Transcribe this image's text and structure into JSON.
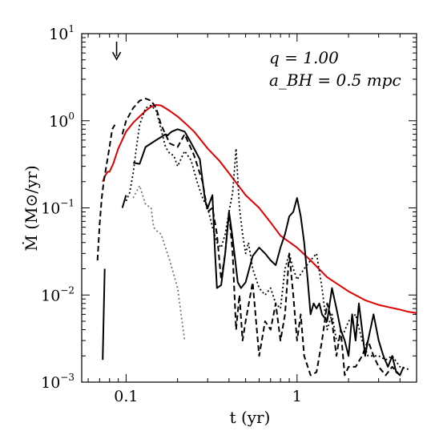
{
  "chart_data": {
    "type": "line",
    "xlabel": "t   (yr)",
    "ylabel": "Ṁ   (M⊙/yr)",
    "x_scale": "log",
    "y_scale": "log",
    "xlim": [
      0.055,
      5.0
    ],
    "ylim": [
      0.001,
      10
    ],
    "x_ticks": [
      {
        "value": 0.1,
        "label": "0.1"
      },
      {
        "value": 1,
        "label": "1"
      }
    ],
    "y_ticks": [
      {
        "value": 0.001,
        "base": "10",
        "exp": "−3"
      },
      {
        "value": 0.01,
        "base": "10",
        "exp": "−2"
      },
      {
        "value": 0.1,
        "base": "10",
        "exp": "−1"
      },
      {
        "value": 1,
        "base": "10",
        "exp": "0"
      },
      {
        "value": 10,
        "base": "10",
        "exp": "1"
      }
    ],
    "annotations": [
      "q = 1.00",
      "a_BH = 0.5 mpc"
    ],
    "arrow_marker": {
      "x": 0.088,
      "direction": "down"
    },
    "grid": false,
    "legend": "none",
    "series": [
      {
        "color": "#e00000",
        "dash": "solid",
        "width": 2,
        "x": [
          0.073,
          0.075,
          0.078,
          0.08,
          0.084,
          0.09,
          0.1,
          0.11,
          0.12,
          0.13,
          0.14,
          0.15,
          0.16,
          0.18,
          0.2,
          0.22,
          0.25,
          0.3,
          0.35,
          0.4,
          0.5,
          0.6,
          0.7,
          0.8,
          1.0,
          1.2,
          1.5,
          2.0,
          2.5,
          3.0,
          3.5,
          4.0,
          4.5,
          5.0
        ],
        "y": [
          0.2,
          0.23,
          0.26,
          0.26,
          0.32,
          0.48,
          0.75,
          0.95,
          1.12,
          1.3,
          1.45,
          1.52,
          1.5,
          1.3,
          1.12,
          0.95,
          0.75,
          0.48,
          0.35,
          0.25,
          0.14,
          0.1,
          0.068,
          0.048,
          0.035,
          0.025,
          0.016,
          0.011,
          0.0087,
          0.0077,
          0.0072,
          0.0068,
          0.0064,
          0.0062
        ]
      },
      {
        "color": "#000000",
        "dash": "solid",
        "width": 2,
        "x": [
          0.073,
          0.075,
          0.09,
          0.095,
          0.1,
          0.105,
          0.11,
          0.12,
          0.13,
          0.14,
          0.15,
          0.16,
          0.17,
          0.175,
          0.18,
          0.185,
          0.2,
          0.22,
          0.235,
          0.25,
          0.27,
          0.29,
          0.3,
          0.32,
          0.33,
          0.34,
          0.36,
          0.38,
          0.4,
          0.42,
          0.45,
          0.47,
          0.5,
          0.55,
          0.6,
          0.65,
          0.7,
          0.75,
          0.8,
          0.85,
          0.9,
          0.95,
          1.0,
          1.05,
          1.1,
          1.15,
          1.2,
          1.25,
          1.3,
          1.35,
          1.4,
          1.5,
          1.6,
          1.7,
          1.8,
          1.9,
          2.0,
          2.1,
          2.2,
          2.3,
          2.4,
          2.5,
          2.6,
          2.8,
          3.0,
          3.2,
          3.4,
          3.6,
          3.8,
          4.0,
          4.2
        ],
        "y": [
          0.0018,
          0.02,
          null,
          0.1,
          0.14,
          null,
          0.33,
          0.32,
          0.5,
          0.55,
          0.6,
          0.65,
          0.7,
          0.68,
          0.72,
          0.75,
          0.8,
          0.75,
          0.6,
          0.48,
          0.36,
          0.12,
          0.1,
          0.14,
          0.035,
          0.012,
          0.013,
          0.03,
          0.09,
          0.045,
          0.014,
          0.012,
          0.014,
          0.028,
          0.035,
          0.03,
          0.025,
          0.022,
          0.035,
          0.05,
          0.08,
          0.09,
          0.13,
          0.08,
          0.04,
          0.016,
          0.006,
          0.008,
          0.007,
          0.008,
          0.006,
          0.005,
          0.012,
          0.007,
          0.004,
          0.003,
          0.002,
          0.006,
          0.003,
          0.008,
          0.004,
          0.002,
          0.003,
          0.006,
          0.003,
          0.002,
          0.0015,
          0.002,
          0.0013,
          0.0012,
          0.0015
        ]
      },
      {
        "color": "#000000",
        "dash": "dashed",
        "width": 2,
        "x": [
          0.068,
          0.07,
          0.072,
          0.074,
          0.077,
          0.08,
          0.083,
          0.086,
          0.09,
          0.095,
          0.1,
          0.11,
          0.12,
          0.13,
          0.14,
          0.15,
          0.16,
          0.18,
          0.2,
          0.22,
          0.25,
          0.28,
          0.3,
          0.32,
          0.34,
          0.36,
          0.38,
          0.4,
          0.42,
          0.44,
          0.46,
          0.48,
          0.5,
          0.55,
          0.6,
          0.65,
          0.7,
          0.75,
          0.8,
          0.85,
          0.9,
          0.95,
          1.0,
          1.05,
          1.1,
          1.2,
          1.3,
          1.4,
          1.5,
          1.6,
          1.7,
          1.8,
          1.9,
          2.0,
          2.2,
          2.4,
          2.6,
          2.8,
          3.0,
          3.3,
          3.6,
          4.0
        ],
        "y": [
          0.025,
          0.065,
          0.13,
          0.2,
          0.32,
          0.5,
          0.8,
          0.9,
          null,
          0.7,
          1.0,
          1.4,
          1.7,
          1.8,
          1.7,
          1.4,
          0.9,
          0.55,
          0.5,
          0.7,
          0.4,
          0.2,
          0.09,
          0.1,
          0.05,
          0.015,
          0.03,
          0.09,
          0.03,
          0.004,
          0.01,
          0.003,
          0.005,
          0.014,
          0.002,
          0.005,
          0.004,
          0.008,
          0.003,
          0.006,
          0.03,
          0.01,
          0.003,
          0.006,
          0.002,
          0.0012,
          0.0013,
          0.003,
          0.008,
          0.005,
          0.002,
          0.004,
          0.0012,
          0.0015,
          0.0015,
          0.002,
          0.003,
          0.002,
          0.0015,
          0.0012,
          0.0015,
          0.0012
        ]
      },
      {
        "color": "#000000",
        "dash": "dotted",
        "width": 1.8,
        "x": [
          0.1,
          0.105,
          0.11,
          0.115,
          0.12,
          0.13,
          0.14,
          0.15,
          0.16,
          0.17,
          0.18,
          0.19,
          0.2,
          0.22,
          0.24,
          0.26,
          0.28,
          0.3,
          0.32,
          0.34,
          0.36,
          0.38,
          0.4,
          0.42,
          0.44,
          0.46,
          0.48,
          0.5,
          0.52,
          0.55,
          0.6,
          0.65,
          0.7,
          0.75,
          0.8,
          0.85,
          0.9,
          0.95,
          1.0,
          1.1,
          1.2,
          1.3,
          1.4,
          1.5,
          1.6,
          1.7,
          1.8,
          2.0,
          2.2,
          2.4,
          2.6,
          2.8,
          3.0,
          3.3,
          3.6,
          4.0,
          4.5
        ],
        "y": [
          0.12,
          0.15,
          0.25,
          0.5,
          0.9,
          1.4,
          1.5,
          1.3,
          0.8,
          0.5,
          0.42,
          0.4,
          0.3,
          0.45,
          0.35,
          0.2,
          0.13,
          0.1,
          0.06,
          0.04,
          0.035,
          0.05,
          0.09,
          0.15,
          0.48,
          0.1,
          0.05,
          0.03,
          0.04,
          0.02,
          0.012,
          0.01,
          0.012,
          0.008,
          0.007,
          0.02,
          0.03,
          0.02,
          0.015,
          0.02,
          0.025,
          0.03,
          0.012,
          0.004,
          0.006,
          0.003,
          0.003,
          0.005,
          0.006,
          0.003,
          0.002,
          0.002,
          0.002,
          0.0018,
          0.002,
          0.0015,
          0.0014
        ]
      },
      {
        "color": "#777777",
        "dash": "dotted",
        "width": 1.8,
        "x": [
          0.11,
          0.12,
          0.13,
          0.14,
          0.145,
          0.15,
          0.16,
          0.18,
          0.2,
          0.22
        ],
        "y": [
          0.13,
          0.18,
          0.11,
          0.1,
          0.06,
          0.055,
          0.05,
          0.025,
          0.012,
          0.003
        ]
      }
    ]
  }
}
